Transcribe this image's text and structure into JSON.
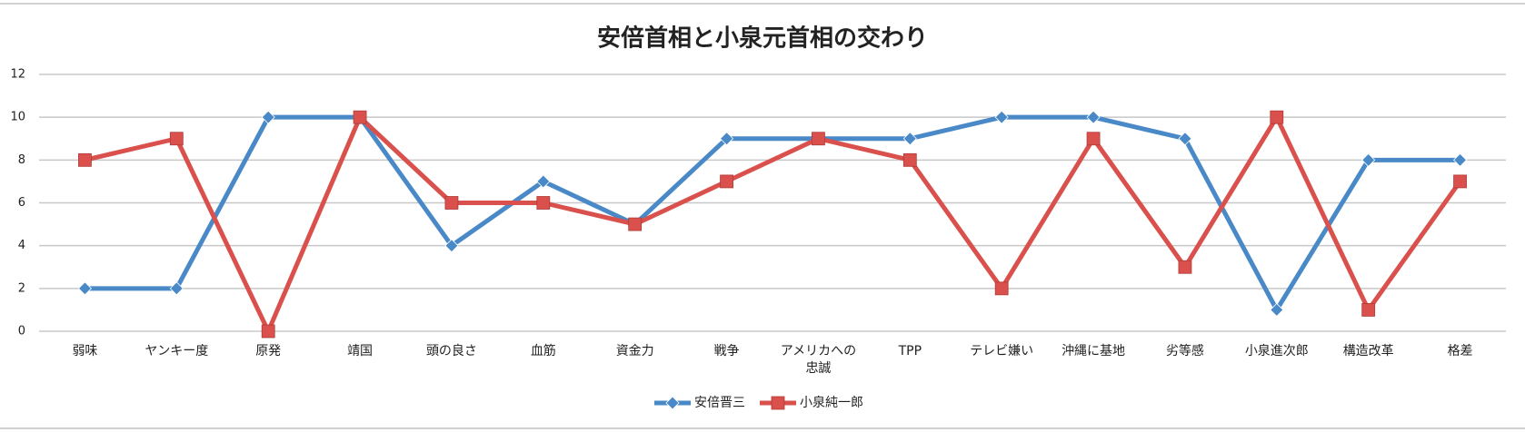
{
  "chart_data": {
    "type": "line",
    "title": "安倍首相と小泉元首相の交わり",
    "categories": [
      "弱味",
      "ヤンキー度",
      "原発",
      "靖国",
      "頭の良さ",
      "血筋",
      "資金力",
      "戦争",
      "アメリカへの忠誠",
      "TPP",
      "テレビ嫌い",
      "沖縄に基地",
      "劣等感",
      "小泉進次郎",
      "構造改革",
      "格差"
    ],
    "series": [
      {
        "name": "安倍晋三",
        "color": "#4a89c8",
        "marker": "diamond",
        "values": [
          2,
          2,
          10,
          10,
          4,
          7,
          5,
          9,
          9,
          9,
          10,
          10,
          9,
          1,
          8,
          8
        ]
      },
      {
        "name": "小泉純一郎",
        "color": "#d9504c",
        "marker": "square",
        "values": [
          8,
          9,
          0,
          10,
          6,
          6,
          5,
          7,
          9,
          8,
          2,
          9,
          3,
          10,
          1,
          7
        ]
      }
    ],
    "ylim": [
      0,
      12
    ],
    "yticks": [
      0,
      2,
      4,
      6,
      8,
      10,
      12
    ],
    "grid": true,
    "legend": "bottom"
  }
}
